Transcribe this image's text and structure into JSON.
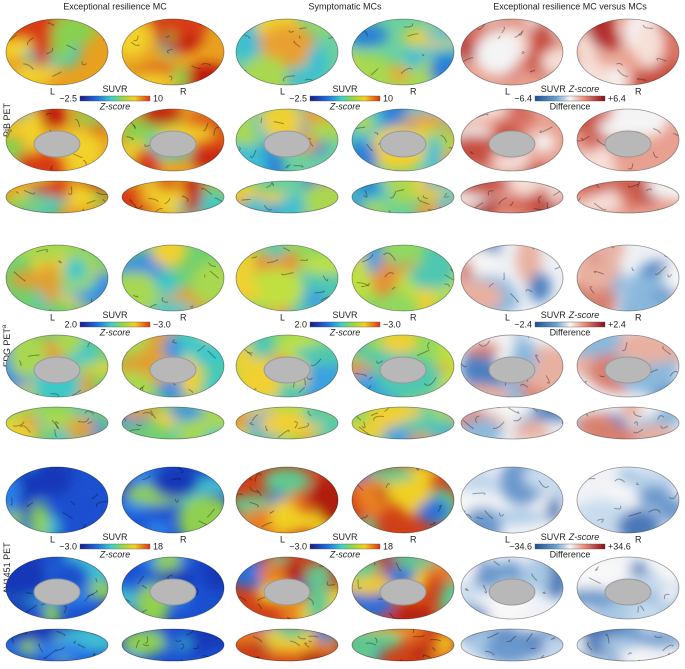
{
  "columns": [
    "Exceptional resilience MC",
    "Symptomatic MCs",
    "Exceptional resilience MC versus MCs"
  ],
  "hemisphere_labels": [
    "L",
    "R"
  ],
  "rows": [
    {
      "label": "PiB PET",
      "colorbars": [
        {
          "top": "SUVR",
          "bottom": "Z-score",
          "min": "−2.5",
          "max": "10"
        },
        {
          "top": "SUVR",
          "bottom": "Z-score",
          "min": "−2.5",
          "max": "10"
        },
        {
          "top": "SUVR",
          "top_italic": "Z-score",
          "bottom": "Difference",
          "min": "−6.4",
          "max": "+6.4"
        }
      ]
    },
    {
      "label": "FDG PET",
      "sup": "a",
      "colorbars": [
        {
          "top": "SUVR",
          "bottom": "Z-score",
          "min": "2.0",
          "max": "−3.0"
        },
        {
          "top": "SUVR",
          "bottom": "Z-score",
          "min": "2.0",
          "max": "−3.0"
        },
        {
          "top": "SUVR",
          "top_italic": "Z-score",
          "bottom": "Difference",
          "min": "−2.4",
          "max": "+2.4"
        }
      ]
    },
    {
      "label": "AV1451 PET",
      "colorbars": [
        {
          "top": "SUVR",
          "bottom": "Z-score",
          "min": "−3.0",
          "max": "18"
        },
        {
          "top": "SUVR",
          "bottom": "Z-score",
          "min": "−3.0",
          "max": "18"
        },
        {
          "top": "SUVR",
          "top_italic": "Z-score",
          "bottom": "Difference",
          "min": "−34.6",
          "max": "+34.6"
        }
      ]
    }
  ]
}
